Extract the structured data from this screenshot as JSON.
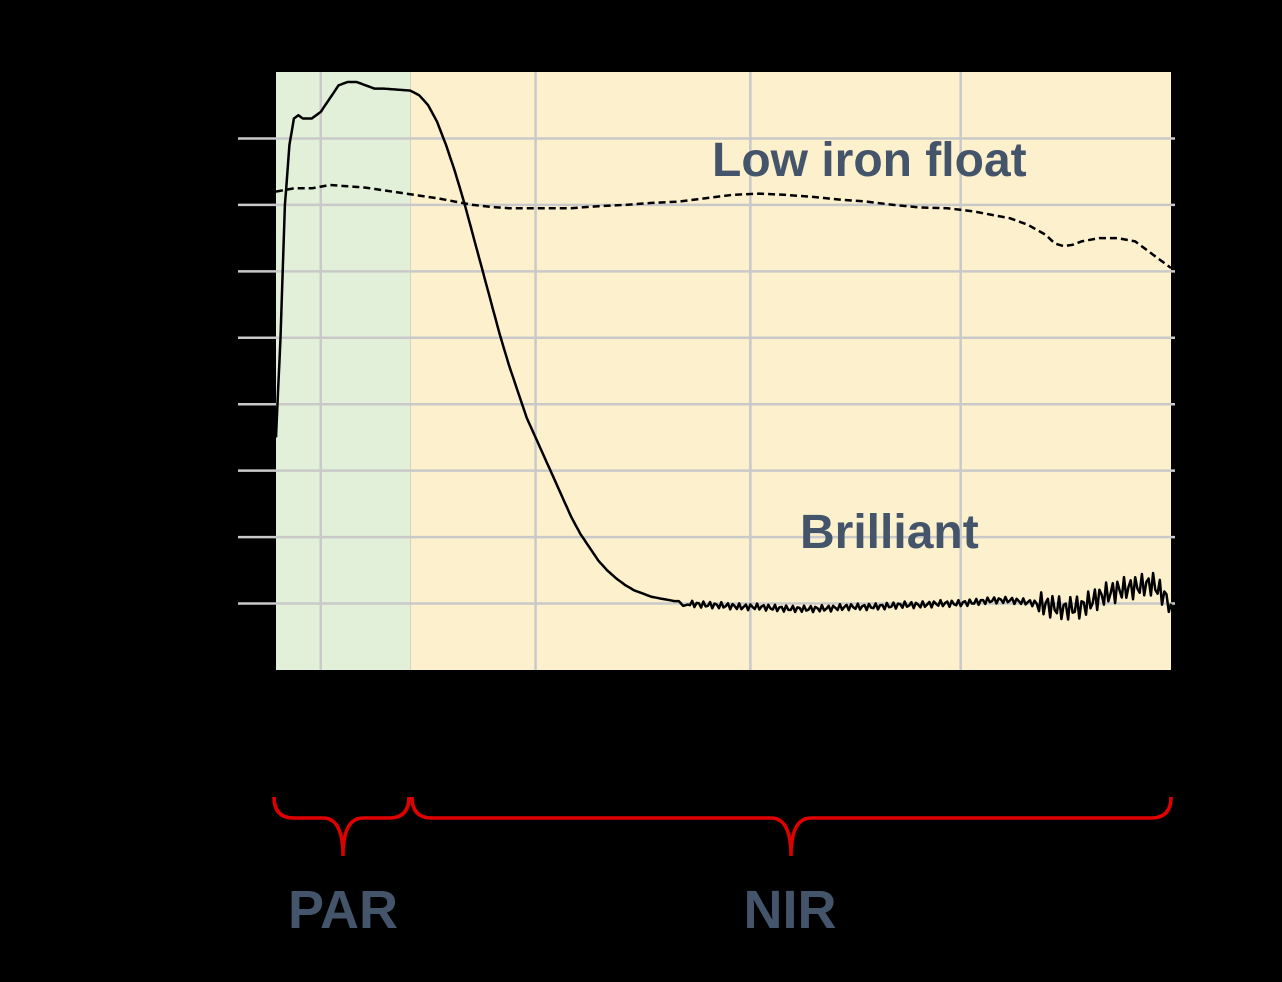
{
  "colors": {
    "background": "#000000",
    "par_region": "#e2efd9",
    "nir_region": "#fdf1cd",
    "grid": "#c9c9c9",
    "series_line": "#000000",
    "annotation_text": "#44546a",
    "brace": "#e00000"
  },
  "annotations": {
    "low_iron": "Low iron float",
    "brilliant": "Brilliant",
    "par": "PAR",
    "nir": "NIR"
  },
  "chart_data": {
    "type": "line",
    "title": "",
    "xlabel": "",
    "ylabel": "",
    "grid": true,
    "xlim": [
      0,
      100
    ],
    "ylim": [
      0,
      9
    ],
    "x_gridlines": [
      5,
      29,
      53,
      76.5
    ],
    "y_gridlines": [
      1,
      2,
      3,
      4,
      5,
      6,
      7,
      8
    ],
    "regions": [
      {
        "name": "PAR",
        "x": [
          0,
          15
        ]
      },
      {
        "name": "NIR",
        "x": [
          15,
          100
        ]
      }
    ],
    "series": [
      {
        "name": "Low iron float",
        "style": "dashed",
        "x": [
          0,
          2,
          4,
          6,
          8,
          10,
          12,
          14,
          16,
          18,
          20,
          22,
          24,
          26,
          28,
          30,
          33,
          36,
          39,
          42,
          45,
          48,
          51,
          54,
          57,
          60,
          63,
          66,
          69,
          72,
          75,
          78,
          80,
          82,
          84,
          86,
          87,
          88,
          89,
          90,
          92,
          94,
          96,
          98,
          100
        ],
        "y": [
          7.2,
          7.25,
          7.25,
          7.3,
          7.28,
          7.26,
          7.22,
          7.18,
          7.14,
          7.1,
          7.05,
          7.0,
          6.97,
          6.95,
          6.95,
          6.95,
          6.95,
          6.98,
          7.0,
          7.03,
          7.05,
          7.1,
          7.15,
          7.17,
          7.15,
          7.12,
          7.08,
          7.05,
          7.0,
          6.96,
          6.95,
          6.9,
          6.85,
          6.8,
          6.7,
          6.55,
          6.42,
          6.38,
          6.4,
          6.45,
          6.5,
          6.5,
          6.45,
          6.25,
          6.05
        ]
      },
      {
        "name": "Brilliant",
        "style": "solid",
        "x": [
          0,
          0.5,
          1,
          1.5,
          2,
          2.5,
          3,
          4,
          5,
          6,
          7,
          8,
          9,
          10,
          11,
          12,
          13,
          14,
          15,
          16,
          17,
          18,
          19,
          20,
          21,
          22,
          23,
          24,
          25,
          26,
          27,
          28,
          29,
          30,
          31,
          32,
          33,
          34,
          35,
          36,
          37,
          38,
          39,
          40,
          42,
          44,
          46,
          48,
          50,
          52,
          54,
          56,
          58,
          60,
          62,
          64,
          66,
          68,
          70,
          72,
          74,
          76,
          78,
          80,
          82,
          84,
          86,
          88,
          90,
          92,
          94,
          96,
          98,
          100
        ],
        "y": [
          3.5,
          5.0,
          7.0,
          7.9,
          8.3,
          8.35,
          8.3,
          8.3,
          8.4,
          8.6,
          8.8,
          8.85,
          8.85,
          8.8,
          8.75,
          8.75,
          8.74,
          8.73,
          8.72,
          8.65,
          8.5,
          8.25,
          7.9,
          7.5,
          7.05,
          6.55,
          6.05,
          5.55,
          5.05,
          4.6,
          4.2,
          3.8,
          3.5,
          3.2,
          2.9,
          2.6,
          2.3,
          2.05,
          1.85,
          1.65,
          1.5,
          1.38,
          1.28,
          1.2,
          1.1,
          1.05,
          1.0,
          0.98,
          0.97,
          0.95,
          0.95,
          0.93,
          0.92,
          0.92,
          0.93,
          0.95,
          0.95,
          0.96,
          0.98,
          0.98,
          1.0,
          1.0,
          1.02,
          1.05,
          1.05,
          1.02,
          0.98,
          0.92,
          0.95,
          1.1,
          1.2,
          1.25,
          1.3,
          1.0
        ]
      }
    ]
  }
}
